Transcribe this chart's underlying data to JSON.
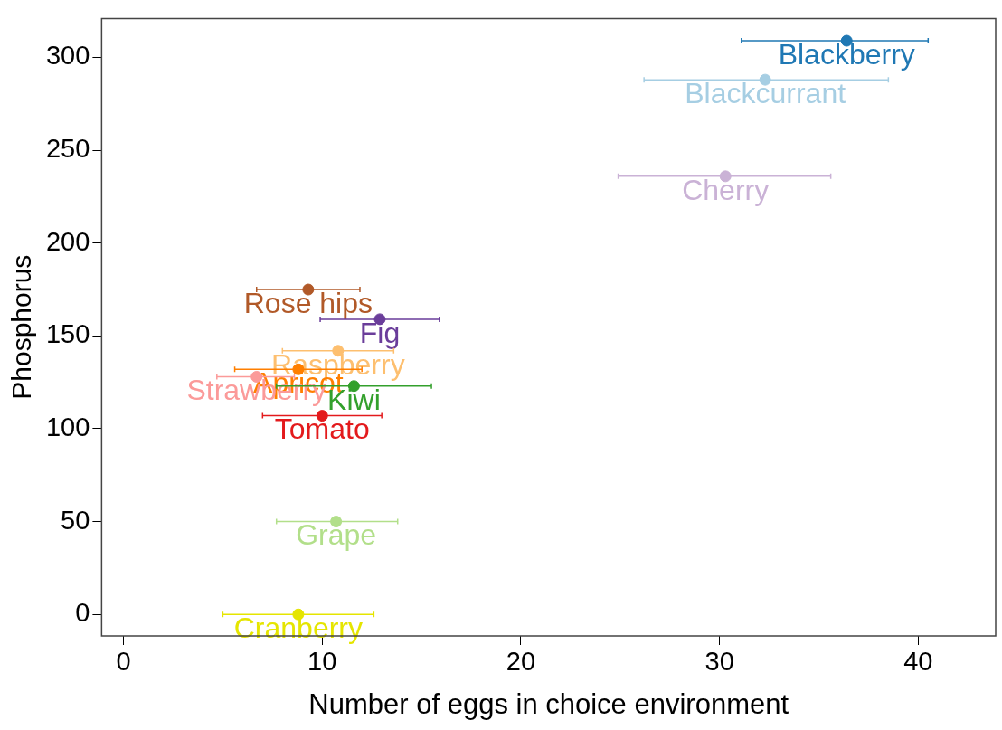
{
  "chart_data": {
    "type": "scatter",
    "xlabel": "Number of eggs in choice environment",
    "ylabel": "Phosphorus",
    "xlim": [
      -1.1,
      43.9
    ],
    "ylim": [
      -11.6,
      321
    ],
    "xticks": [
      0,
      10,
      20,
      30,
      40
    ],
    "yticks": [
      0,
      50,
      100,
      150,
      200,
      250,
      300
    ],
    "grid": false,
    "legend": false,
    "marker": "circle",
    "series": [
      {
        "name": "Blackberry",
        "color": "#1f78b4",
        "x": [
          36.4
        ],
        "values": [
          309
        ],
        "xerrors": [
          [
            31.1,
            40.5
          ]
        ]
      },
      {
        "name": "Blackcurrant",
        "color": "#a6cee3",
        "x": [
          32.3
        ],
        "values": [
          288
        ],
        "xerrors": [
          [
            26.2,
            38.5
          ]
        ]
      },
      {
        "name": "Cherry",
        "color": "#cab2d6",
        "x": [
          30.3
        ],
        "values": [
          236
        ],
        "xerrors": [
          [
            24.9,
            35.6
          ]
        ]
      },
      {
        "name": "Rose hips",
        "color": "#b15928",
        "x": [
          9.3
        ],
        "values": [
          175
        ],
        "xerrors": [
          [
            6.7,
            11.9
          ]
        ]
      },
      {
        "name": "Fig",
        "color": "#6a3d9a",
        "x": [
          12.9
        ],
        "values": [
          159
        ],
        "xerrors": [
          [
            9.9,
            15.9
          ]
        ]
      },
      {
        "name": "Raspberry",
        "color": "#fdbf6f",
        "x": [
          10.8
        ],
        "values": [
          142
        ],
        "xerrors": [
          [
            8.0,
            13.6
          ]
        ]
      },
      {
        "name": "Apricot",
        "color": "#ff7f00",
        "x": [
          8.8
        ],
        "values": [
          132
        ],
        "xerrors": [
          [
            5.6,
            12.0
          ]
        ]
      },
      {
        "name": "Strawberry",
        "color": "#fb9a99",
        "x": [
          6.7
        ],
        "values": [
          128
        ],
        "xerrors": [
          [
            4.7,
            8.6
          ]
        ]
      },
      {
        "name": "Kiwi",
        "color": "#33a02c",
        "x": [
          11.6
        ],
        "values": [
          123
        ],
        "xerrors": [
          [
            7.7,
            15.5
          ]
        ]
      },
      {
        "name": "Tomato",
        "color": "#e31a1c",
        "x": [
          10.0
        ],
        "values": [
          107
        ],
        "xerrors": [
          [
            7.0,
            13.0
          ]
        ]
      },
      {
        "name": "Grape",
        "color": "#b2df8a",
        "x": [
          10.7
        ],
        "values": [
          50
        ],
        "xerrors": [
          [
            7.7,
            13.8
          ]
        ]
      },
      {
        "name": "Cranberry",
        "color": "#e5e500",
        "x": [
          8.8
        ],
        "values": [
          0
        ],
        "xerrors": [
          [
            5.0,
            12.6
          ]
        ]
      }
    ]
  }
}
